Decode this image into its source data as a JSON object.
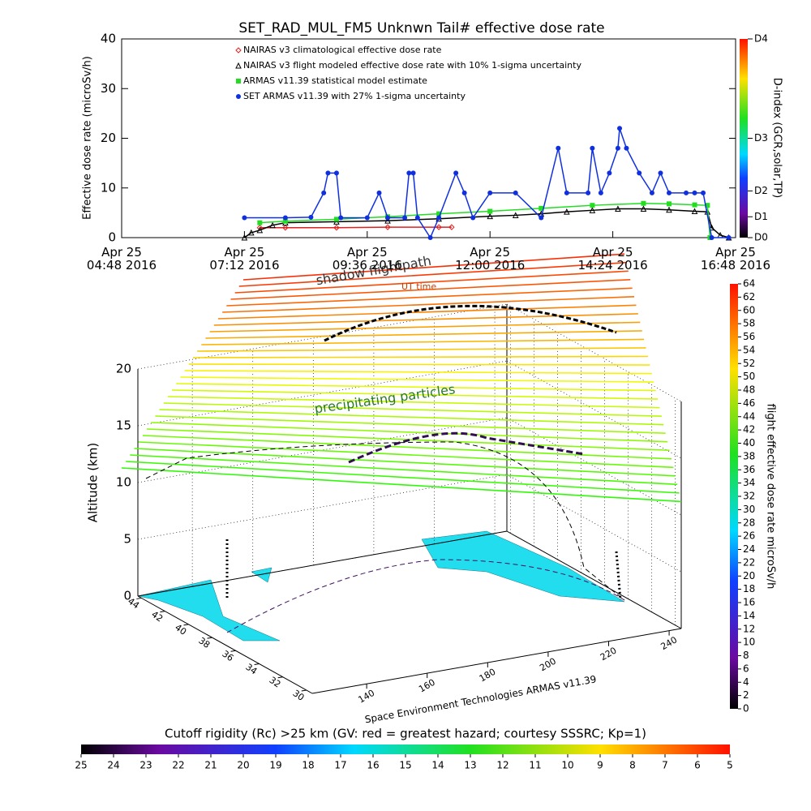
{
  "chart_data": [
    {
      "type": "line",
      "title": "SET_RAD_MUL_FM5 Unknwn Tail#  effective dose rate",
      "ylabel": "Effective dose rate (microSv/h)",
      "xlim": [
        "2016-04-25T04:48",
        "2016-04-25T16:48"
      ],
      "xticks": [
        {
          "value": "2016-04-25T04:48",
          "label": "Apr 25\n04:48 2016"
        },
        {
          "value": "2016-04-25T07:12",
          "label": "Apr 25\n07:12 2016"
        },
        {
          "value": "2016-04-25T09:36",
          "label": "Apr 25\n09:36 2016"
        },
        {
          "value": "2016-04-25T12:00",
          "label": "Apr 25\n12:00 2016"
        },
        {
          "value": "2016-04-25T14:24",
          "label": "Apr 25\n14:24 2016"
        },
        {
          "value": "2016-04-25T16:48",
          "label": "Apr 25\n16:48 2016"
        }
      ],
      "ylim": [
        0,
        40
      ],
      "yticks": [
        0,
        10,
        20,
        30,
        40
      ],
      "y2label": "D-index (GCR,solar,TP)",
      "y2lim": [
        0,
        40
      ],
      "y2ticks": [
        {
          "value": 0,
          "label": "D0"
        },
        {
          "value": 4.2,
          "label": "D1"
        },
        {
          "value": 9.4,
          "label": "D2"
        },
        {
          "value": 20,
          "label": "D3"
        },
        {
          "value": 40,
          "label": "D4"
        }
      ],
      "series": [
        {
          "name": "NAIRAS v3 climatological effective dose rate",
          "color": "#e02020",
          "marker": "diamond",
          "x": [
            "2016-04-25T07:30",
            "2016-04-25T08:00",
            "2016-04-25T09:00",
            "2016-04-25T10:00",
            "2016-04-25T11:00",
            "2016-04-25T11:15"
          ],
          "values": [
            2,
            2,
            2,
            2.1,
            2.1,
            2.1
          ]
        },
        {
          "name": "NAIRAS v3 flight modeled effective dose rate with 10% 1-sigma uncertainty",
          "color": "#000000",
          "marker": "triangle",
          "x": [
            "2016-04-25T07:12",
            "2016-04-25T07:20",
            "2016-04-25T07:30",
            "2016-04-25T07:45",
            "2016-04-25T08:00",
            "2016-04-25T09:00",
            "2016-04-25T10:00",
            "2016-04-25T11:00",
            "2016-04-25T12:00",
            "2016-04-25T12:30",
            "2016-04-25T13:00",
            "2016-04-25T13:30",
            "2016-04-25T14:00",
            "2016-04-25T14:30",
            "2016-04-25T15:00",
            "2016-04-25T15:30",
            "2016-04-25T16:00",
            "2016-04-25T16:15",
            "2016-04-25T16:20",
            "2016-04-25T16:30",
            "2016-04-25T16:40"
          ],
          "values": [
            0,
            1,
            1.5,
            2.5,
            3,
            3.2,
            3.4,
            3.8,
            4.3,
            4.5,
            4.8,
            5.2,
            5.5,
            5.8,
            5.8,
            5.6,
            5.3,
            5.2,
            2,
            0.5,
            0
          ]
        },
        {
          "name": "ARMAS v11.39 statistical model estimate",
          "color": "#22dd22",
          "marker": "star",
          "x": [
            "2016-04-25T07:30",
            "2016-04-25T08:00",
            "2016-04-25T09:00",
            "2016-04-25T10:00",
            "2016-04-25T11:00",
            "2016-04-25T12:00",
            "2016-04-25T13:00",
            "2016-04-25T14:00",
            "2016-04-25T15:00",
            "2016-04-25T15:30",
            "2016-04-25T16:00",
            "2016-04-25T16:15",
            "2016-04-25T16:18"
          ],
          "values": [
            3,
            3.3,
            3.7,
            4.2,
            4.8,
            5.3,
            5.9,
            6.5,
            6.9,
            6.8,
            6.6,
            6.5,
            0
          ]
        },
        {
          "name": "SET ARMAS v11.39 with 27% 1-sigma uncertainty",
          "color": "#1030e0",
          "marker": "circle",
          "x": [
            "2016-04-25T07:12",
            "2016-04-25T08:00",
            "2016-04-25T08:30",
            "2016-04-25T08:45",
            "2016-04-25T08:50",
            "2016-04-25T09:00",
            "2016-04-25T09:05",
            "2016-04-25T09:36",
            "2016-04-25T09:50",
            "2016-04-25T10:00",
            "2016-04-25T10:20",
            "2016-04-25T10:25",
            "2016-04-25T10:30",
            "2016-04-25T10:35",
            "2016-04-25T10:50",
            "2016-04-25T11:00",
            "2016-04-25T11:20",
            "2016-04-25T11:30",
            "2016-04-25T11:40",
            "2016-04-25T12:00",
            "2016-04-25T12:30",
            "2016-04-25T13:00",
            "2016-04-25T13:20",
            "2016-04-25T13:30",
            "2016-04-25T13:55",
            "2016-04-25T14:00",
            "2016-04-25T14:10",
            "2016-04-25T14:20",
            "2016-04-25T14:30",
            "2016-04-25T14:32",
            "2016-04-25T14:40",
            "2016-04-25T14:55",
            "2016-04-25T15:10",
            "2016-04-25T15:20",
            "2016-04-25T15:30",
            "2016-04-25T15:50",
            "2016-04-25T16:00",
            "2016-04-25T16:10",
            "2016-04-25T16:20",
            "2016-04-25T16:40"
          ],
          "values": [
            4,
            4,
            4.1,
            9,
            13,
            13,
            4,
            4,
            9,
            4,
            4,
            13,
            13,
            4,
            0,
            4,
            13,
            9,
            4,
            9,
            9,
            4,
            18,
            9,
            9,
            18,
            9,
            13,
            18,
            22,
            18,
            13,
            9,
            13,
            9,
            9,
            9,
            9,
            0,
            0
          ]
        }
      ]
    },
    {
      "type": "3d",
      "zlabel": "Altitude (km)",
      "zlim": [
        0,
        20
      ],
      "zticks": [
        0,
        5,
        10,
        15,
        20
      ],
      "latlim": [
        29.5,
        44.3
      ],
      "latticks": [
        30,
        32,
        34,
        36,
        38,
        40,
        42,
        44
      ],
      "lonlim": [
        122,
        244
      ],
      "lonticks": [
        140,
        160,
        180,
        200,
        220,
        240
      ],
      "annotations": [
        "shadow flightpath",
        "UT time",
        "precipitating particles",
        "Space Environment Technologies ARMAS v11.39"
      ],
      "colorbar": {
        "label": "flight effective dose rate microSv/h",
        "lim": [
          0,
          64
        ],
        "ticks": [
          0,
          2,
          4,
          6,
          8,
          10,
          12,
          14,
          16,
          18,
          20,
          22,
          24,
          26,
          28,
          30,
          32,
          34,
          36,
          38,
          40,
          42,
          44,
          46,
          48,
          50,
          52,
          54,
          56,
          58,
          60,
          62,
          64
        ]
      },
      "colorbar2": {
        "label": "Cutoff rigidity (Rc) >25 km (GV: red = greatest hazard; courtesy SSSRC; Kp=1)",
        "lim": [
          25,
          5
        ],
        "ticks": [
          25,
          24,
          23,
          22,
          21,
          20,
          19,
          18,
          17,
          16,
          15,
          14,
          13,
          12,
          11,
          10,
          9,
          8,
          7,
          6,
          5
        ]
      }
    }
  ]
}
